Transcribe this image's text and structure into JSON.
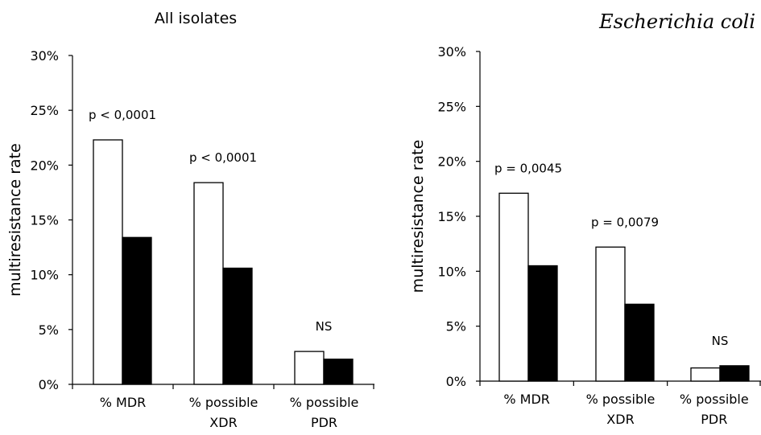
{
  "chart_data": [
    {
      "type": "bar",
      "title": "All isolates",
      "title_italic": false,
      "ylabel": "multiresistance rate",
      "xlabel": "",
      "ylim": [
        0,
        30
      ],
      "yticks": [
        "0%",
        "5%",
        "10%",
        "15%",
        "20%",
        "25%",
        "30%"
      ],
      "grid": false,
      "legend": "none",
      "categories": [
        [
          "% MDR"
        ],
        [
          "% possible",
          "XDR"
        ],
        [
          "% possible",
          "PDR"
        ]
      ],
      "series": [
        {
          "fill": "#ffffff",
          "values": [
            22.3,
            18.4,
            3.0
          ]
        },
        {
          "fill": "#000000",
          "values": [
            13.4,
            10.6,
            2.3
          ]
        }
      ],
      "annotations": [
        "p < 0,0001",
        "p < 0,0001",
        "NS"
      ]
    },
    {
      "type": "bar",
      "title": "Escherichia coli",
      "title_italic": true,
      "ylabel": "multiresistance rate",
      "xlabel": "",
      "ylim": [
        0,
        30
      ],
      "yticks": [
        "0%",
        "5%",
        "10%",
        "15%",
        "20%",
        "25%",
        "30%"
      ],
      "grid": false,
      "legend": "none",
      "categories": [
        [
          "% MDR"
        ],
        [
          "% possible",
          "XDR"
        ],
        [
          "% possible",
          "PDR"
        ]
      ],
      "series": [
        {
          "fill": "#ffffff",
          "values": [
            17.1,
            12.2,
            1.2
          ]
        },
        {
          "fill": "#000000",
          "values": [
            10.5,
            7.0,
            1.4
          ]
        }
      ],
      "annotations": [
        "p = 0,0045",
        "p = 0,0079",
        "NS"
      ]
    }
  ]
}
